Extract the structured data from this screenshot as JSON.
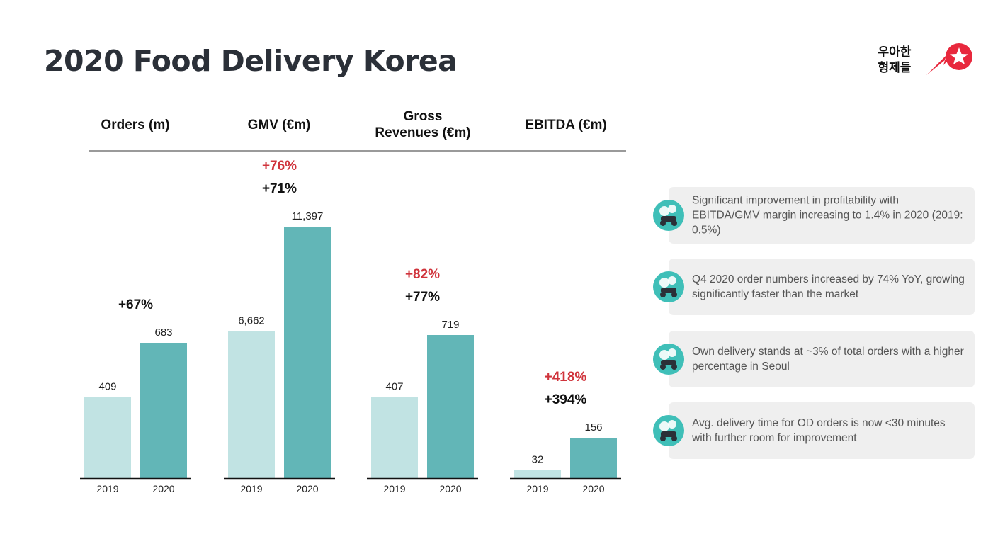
{
  "title": "2020 Food Delivery Korea",
  "colors": {
    "bar_2019": "#c1e3e3",
    "bar_2020": "#62b6b7",
    "growth_red": "#d0343c",
    "growth_black": "#111111",
    "icon_teal": "#3fbfb8",
    "logo_red": "#e8283d"
  },
  "logos": {
    "woowa_text_line1": "우아한",
    "woowa_text_line2": "형제들"
  },
  "chart_data": [
    {
      "type": "bar",
      "title": "Orders (m)",
      "categories": [
        "2019",
        "2020"
      ],
      "values": [
        409,
        683
      ],
      "value_labels": [
        "409",
        "683"
      ],
      "growth": [
        {
          "text": "+67%",
          "color": "black"
        }
      ]
    },
    {
      "type": "bar",
      "title": "GMV (€m)",
      "categories": [
        "2019",
        "2020"
      ],
      "values": [
        6662,
        11397
      ],
      "value_labels": [
        "6,662",
        "11,397"
      ],
      "growth": [
        {
          "text": "+76%",
          "color": "red"
        },
        {
          "text": "+71%",
          "color": "black"
        }
      ]
    },
    {
      "type": "bar",
      "title": "Gross Revenues (€m)",
      "categories": [
        "2019",
        "2020"
      ],
      "values": [
        407,
        719
      ],
      "value_labels": [
        "407",
        "719"
      ],
      "growth": [
        {
          "text": "+82%",
          "color": "red"
        },
        {
          "text": "+77%",
          "color": "black"
        }
      ]
    },
    {
      "type": "bar",
      "title": "EBITDA (€m)",
      "categories": [
        "2019",
        "2020"
      ],
      "values": [
        32,
        156
      ],
      "value_labels": [
        "32",
        "156"
      ],
      "growth": [
        {
          "text": "+418%",
          "color": "red"
        },
        {
          "text": "+394%",
          "color": "black"
        }
      ]
    }
  ],
  "headers": {
    "orders": "Orders (m)",
    "gmv": "GMV (€m)",
    "revenues_line1": "Gross",
    "revenues_line2": "Revenues (€m)",
    "ebitda": "EBITDA (€m)"
  },
  "highlights": [
    {
      "icon": "baemin-scooter-icon",
      "text": "Significant improvement in profitability with EBITDA/GMV margin increasing to 1.4% in 2020 (2019: 0.5%)"
    },
    {
      "icon": "baemin-scooter-icon",
      "text": "Q4 2020 order numbers increased by 74% YoY, growing significantly faster than the market"
    },
    {
      "icon": "baemin-scooter-icon",
      "text": "Own delivery stands at ~3% of total orders with a higher percentage in Seoul"
    },
    {
      "icon": "baemin-scooter-icon",
      "text": "Avg. delivery time for OD orders is now <30 minutes with further room for improvement"
    }
  ]
}
